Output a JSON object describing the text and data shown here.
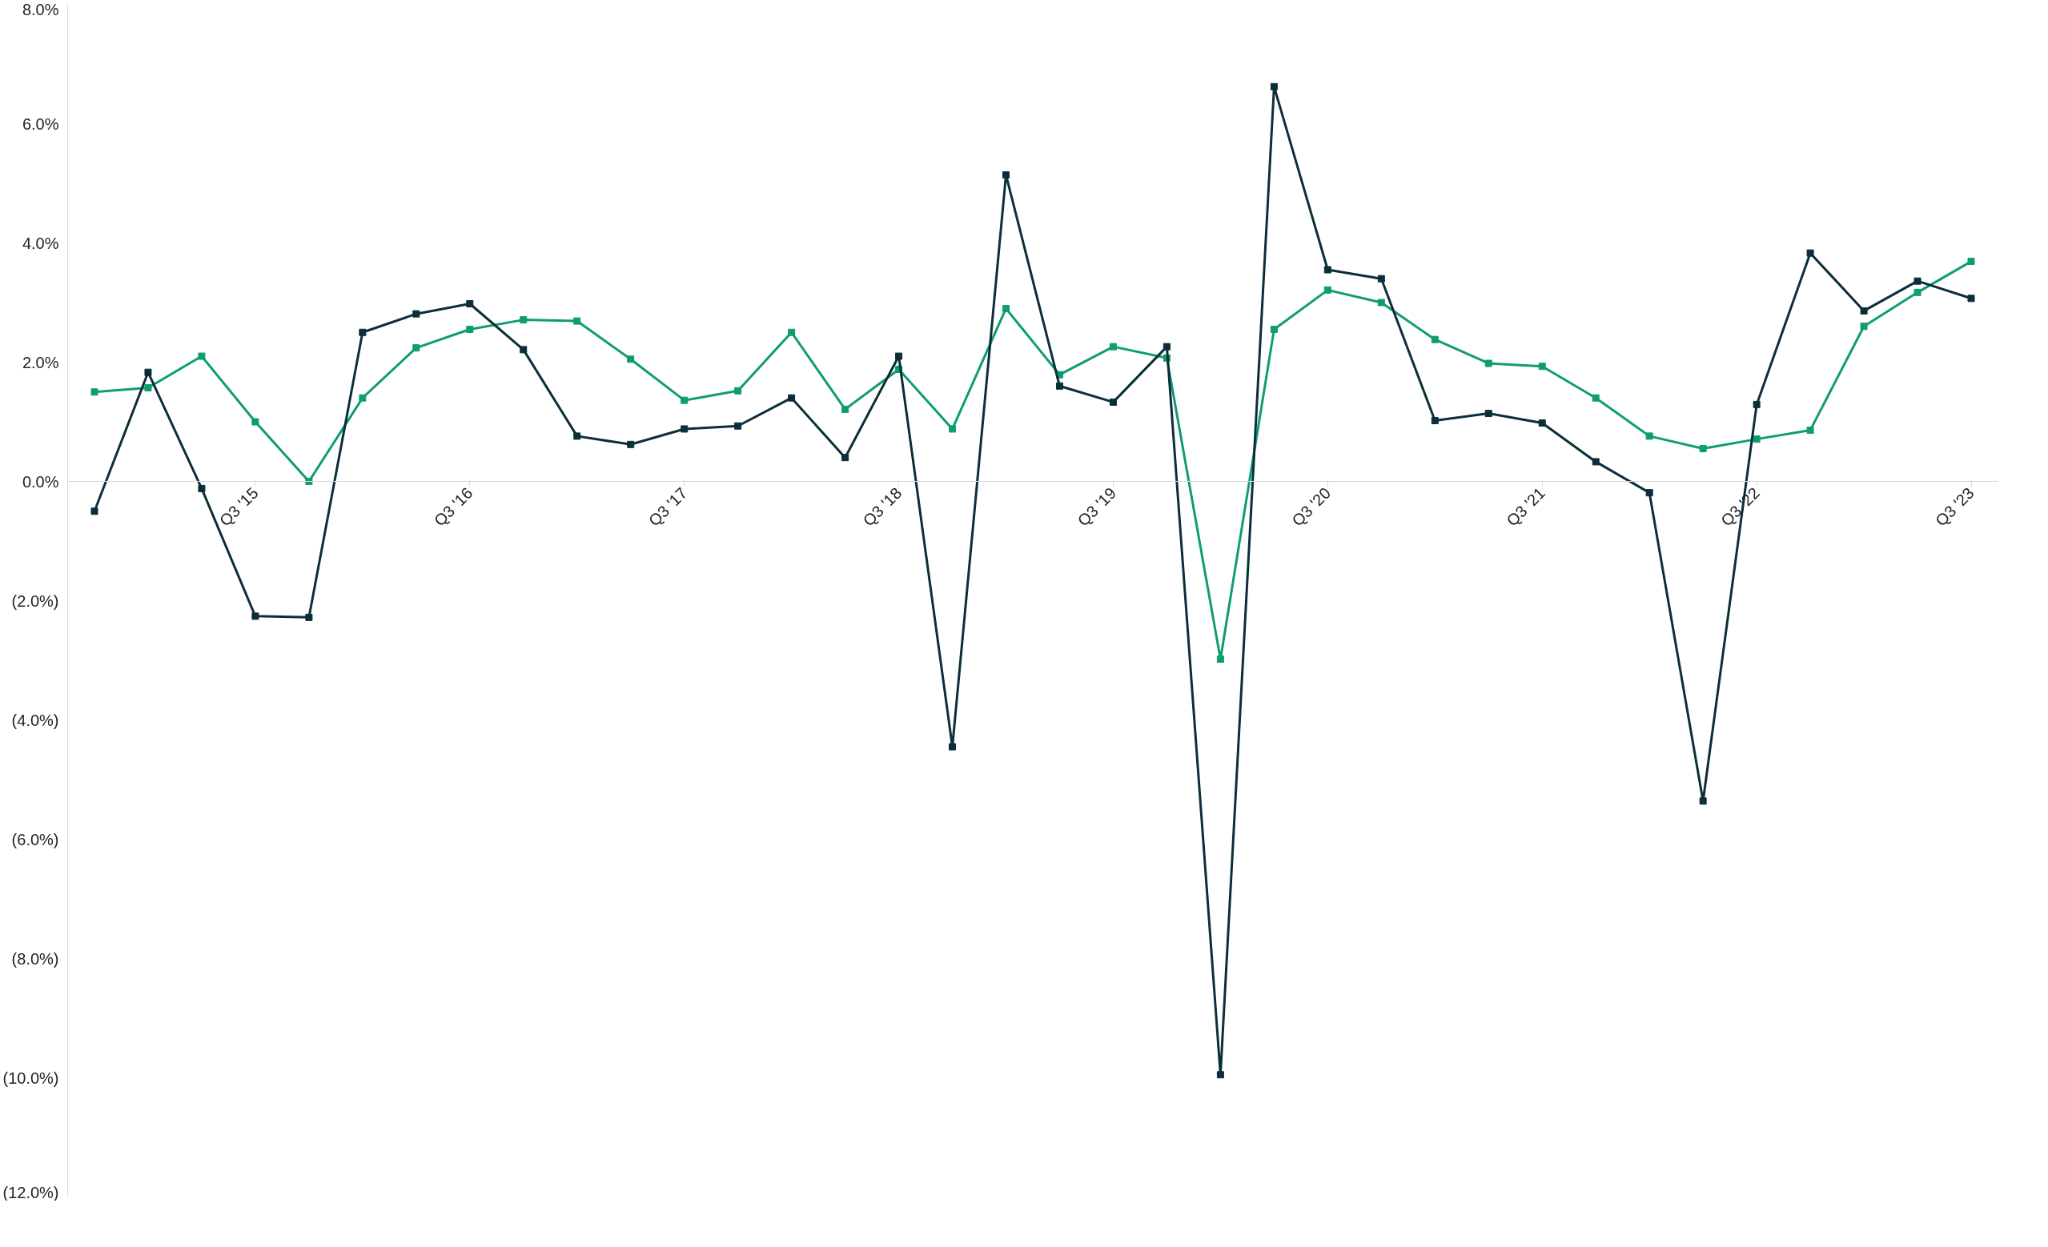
{
  "chart_data": {
    "type": "line",
    "marker": "square",
    "line_style": "solid",
    "categories": [
      null,
      null,
      null,
      "Q3 '15",
      null,
      null,
      null,
      "Q3 '16",
      null,
      null,
      null,
      "Q3 '17",
      null,
      null,
      null,
      "Q3 '18",
      null,
      null,
      null,
      "Q3 '19",
      null,
      null,
      null,
      "Q3 '20",
      null,
      null,
      null,
      "Q3 '21",
      null,
      null,
      null,
      "Q3 '22",
      null,
      null,
      null,
      "Q3 '23"
    ],
    "ylim": [
      -12,
      8
    ],
    "yticks": [
      {
        "value": -12,
        "label": "(12.0%)"
      },
      {
        "value": -10,
        "label": "(10.0%)"
      },
      {
        "value": -8,
        "label": "(8.0%)"
      },
      {
        "value": -6,
        "label": "(6.0%)"
      },
      {
        "value": -4,
        "label": "(4.0%)"
      },
      {
        "value": -2,
        "label": "(2.0%)"
      },
      {
        "value": 0,
        "label": "0.0%"
      },
      {
        "value": 2,
        "label": "2.0%"
      },
      {
        "value": 4,
        "label": "4.0%"
      },
      {
        "value": 6,
        "label": "6.0%"
      },
      {
        "value": 8,
        "label": "8.0%"
      }
    ],
    "series": [
      {
        "color": "#0f9d6e",
        "values": [
          1.5,
          1.57,
          2.1,
          1.0,
          0.0,
          1.4,
          2.24,
          2.55,
          2.71,
          2.69,
          2.05,
          1.36,
          1.52,
          2.5,
          1.21,
          1.88,
          0.88,
          2.9,
          1.79,
          2.26,
          2.07,
          -2.98,
          2.55,
          3.21,
          3.0,
          2.38,
          1.98,
          1.93,
          1.4,
          0.76,
          0.55,
          0.71,
          0.86,
          2.6,
          3.17,
          3.69
        ]
      },
      {
        "color": "#0b2e3a",
        "values": [
          -0.5,
          1.83,
          -0.12,
          -2.26,
          -2.28,
          2.5,
          2.81,
          2.98,
          2.21,
          0.76,
          0.62,
          0.88,
          0.93,
          1.4,
          0.4,
          2.1,
          -4.45,
          5.14,
          1.6,
          1.33,
          2.26,
          -9.95,
          6.62,
          3.55,
          3.4,
          1.02,
          1.14,
          0.98,
          0.33,
          -0.19,
          -5.36,
          1.29,
          3.83,
          2.86,
          3.36,
          3.07
        ]
      }
    ]
  }
}
